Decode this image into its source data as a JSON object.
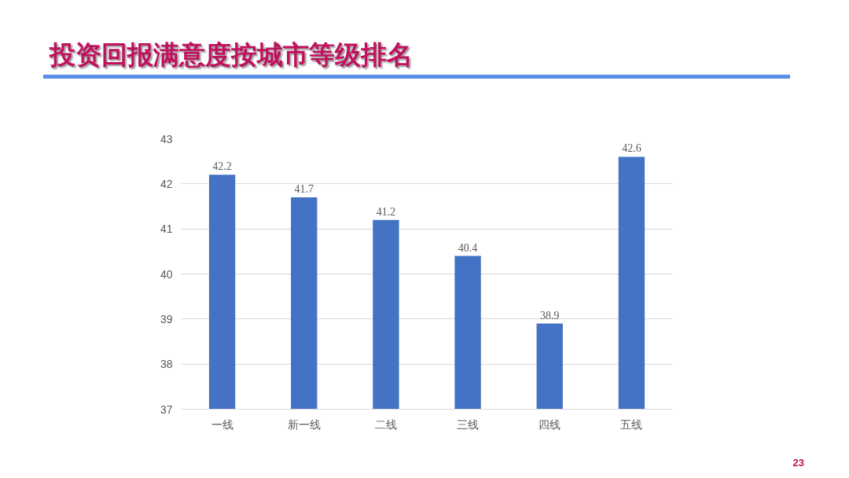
{
  "chart_data": {
    "type": "bar",
    "title": "投资回报满意度按城市等级排名",
    "categories": [
      "一线",
      "新一线",
      "二线",
      "三线",
      "四线",
      "五线"
    ],
    "values": [
      42.2,
      41.7,
      41.2,
      40.4,
      38.9,
      42.6
    ],
    "color": "#4472c4",
    "ylim": [
      37,
      43
    ],
    "yticks": [
      37,
      38,
      39,
      40,
      41,
      42,
      43
    ],
    "grid": "y",
    "data_labels": true,
    "annotations": [
      "23"
    ]
  }
}
